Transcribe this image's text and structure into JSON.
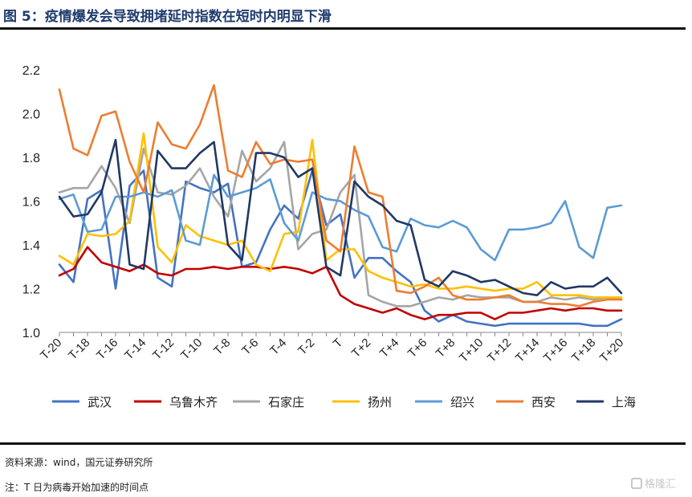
{
  "title": "图 5：疫情爆发会导致拥堵延时指数在短时内明显下滑",
  "source_note": "资料来源：wind，国元证券研究所",
  "footnote": "注：T 日为病毒开始加速的时间点",
  "watermark": "格隆汇",
  "chart_data": {
    "type": "line",
    "ylim": [
      1.0,
      2.2
    ],
    "yticks": [
      1.0,
      1.2,
      1.4,
      1.6,
      1.8,
      2.0,
      2.2
    ],
    "ytick_labels": [
      "1.0",
      "1.2",
      "1.4",
      "1.6",
      "1.8",
      "2.0",
      "2.2"
    ],
    "x": [
      -20,
      -19,
      -18,
      -17,
      -16,
      -15,
      -14,
      -13,
      -12,
      -11,
      -10,
      -9,
      -8,
      -7,
      -6,
      -5,
      -4,
      -3,
      -2,
      -1,
      0,
      1,
      2,
      3,
      4,
      5,
      6,
      7,
      8,
      9,
      10,
      11,
      12,
      13,
      14,
      15,
      16,
      17,
      18,
      19,
      20
    ],
    "xticks": [
      -20,
      -18,
      -16,
      -14,
      -12,
      -10,
      -8,
      -6,
      -4,
      -2,
      0,
      2,
      4,
      6,
      8,
      10,
      12,
      14,
      16,
      18,
      20
    ],
    "xtick_labels": [
      "T-20",
      "T-18",
      "T-16",
      "T-14",
      "T-12",
      "T-10",
      "T-8",
      "T-6",
      "T-4",
      "T-2",
      "T",
      "T+2",
      "T+4",
      "T+6",
      "T+8",
      "T+10",
      "T+12",
      "T+14",
      "T+16",
      "T+18",
      "T+20"
    ],
    "legend_position": "bottom",
    "series": [
      {
        "name": "武汉",
        "color": "#4472c4",
        "values": [
          1.31,
          1.23,
          1.61,
          1.65,
          1.2,
          1.67,
          1.74,
          1.25,
          1.21,
          1.69,
          1.66,
          1.64,
          1.68,
          1.3,
          1.32,
          1.47,
          1.58,
          1.52,
          1.74,
          1.49,
          1.54,
          1.25,
          1.34,
          1.34,
          1.28,
          1.23,
          1.1,
          1.05,
          1.08,
          1.05,
          1.04,
          1.03,
          1.04,
          1.04,
          1.04,
          1.04,
          1.04,
          1.04,
          1.03,
          1.03,
          1.06
        ]
      },
      {
        "name": "乌鲁木齐",
        "color": "#c00000",
        "values": [
          1.26,
          1.29,
          1.39,
          1.32,
          1.3,
          1.28,
          1.31,
          1.27,
          1.26,
          1.29,
          1.29,
          1.3,
          1.29,
          1.3,
          1.3,
          1.29,
          1.3,
          1.29,
          1.27,
          1.3,
          1.17,
          1.13,
          1.11,
          1.09,
          1.11,
          1.08,
          1.06,
          1.08,
          1.08,
          1.09,
          1.09,
          1.06,
          1.09,
          1.09,
          1.1,
          1.11,
          1.1,
          1.11,
          1.11,
          1.1,
          1.1
        ]
      },
      {
        "name": "石家庄",
        "color": "#a5a5a5",
        "values": [
          1.64,
          1.66,
          1.66,
          1.76,
          1.66,
          1.5,
          1.84,
          1.64,
          1.63,
          1.67,
          1.75,
          1.62,
          1.53,
          1.83,
          1.69,
          1.75,
          1.87,
          1.38,
          1.45,
          1.47,
          1.64,
          1.72,
          1.17,
          1.14,
          1.12,
          1.12,
          1.14,
          1.16,
          1.15,
          1.17,
          1.16,
          1.16,
          1.16,
          1.14,
          1.14,
          1.16,
          1.15,
          1.16,
          1.15,
          1.16,
          1.15
        ]
      },
      {
        "name": "扬州",
        "color": "#ffc000",
        "values": [
          1.35,
          1.31,
          1.45,
          1.44,
          1.45,
          1.51,
          1.91,
          1.39,
          1.32,
          1.49,
          1.44,
          1.42,
          1.4,
          1.42,
          1.31,
          1.28,
          1.45,
          1.46,
          1.88,
          1.33,
          1.38,
          1.38,
          1.28,
          1.25,
          1.23,
          1.21,
          1.22,
          1.2,
          1.2,
          1.21,
          1.2,
          1.19,
          1.2,
          1.2,
          1.23,
          1.17,
          1.17,
          1.17,
          1.16,
          1.16,
          1.16
        ]
      },
      {
        "name": "绍兴",
        "color": "#5b9bd5",
        "values": [
          1.61,
          1.63,
          1.46,
          1.47,
          1.62,
          1.62,
          1.64,
          1.62,
          1.65,
          1.42,
          1.4,
          1.72,
          1.62,
          1.64,
          1.66,
          1.7,
          1.5,
          1.42,
          1.64,
          1.61,
          1.6,
          1.56,
          1.53,
          1.39,
          1.37,
          1.52,
          1.49,
          1.48,
          1.51,
          1.48,
          1.38,
          1.33,
          1.47,
          1.47,
          1.48,
          1.5,
          1.6,
          1.39,
          1.34,
          1.57,
          1.58
        ]
      },
      {
        "name": "西安",
        "color": "#ed7d31",
        "values": [
          2.11,
          1.84,
          1.81,
          1.99,
          2.01,
          1.78,
          1.64,
          1.96,
          1.86,
          1.84,
          1.95,
          2.13,
          1.74,
          1.71,
          1.87,
          1.77,
          1.79,
          1.78,
          1.79,
          1.42,
          1.37,
          1.85,
          1.64,
          1.62,
          1.19,
          1.18,
          1.21,
          1.25,
          1.17,
          1.15,
          1.15,
          1.16,
          1.17,
          1.14,
          1.14,
          1.13,
          1.13,
          1.12,
          1.14,
          1.15,
          1.15
        ]
      },
      {
        "name": "上海",
        "color": "#203864",
        "values": [
          1.62,
          1.53,
          1.54,
          1.64,
          1.88,
          1.31,
          1.29,
          1.83,
          1.75,
          1.75,
          1.82,
          1.87,
          1.4,
          1.33,
          1.82,
          1.82,
          1.8,
          1.71,
          1.75,
          1.3,
          1.26,
          1.69,
          1.62,
          1.58,
          1.51,
          1.49,
          1.24,
          1.21,
          1.28,
          1.26,
          1.23,
          1.24,
          1.21,
          1.18,
          1.17,
          1.23,
          1.2,
          1.21,
          1.21,
          1.25,
          1.18
        ]
      }
    ]
  }
}
